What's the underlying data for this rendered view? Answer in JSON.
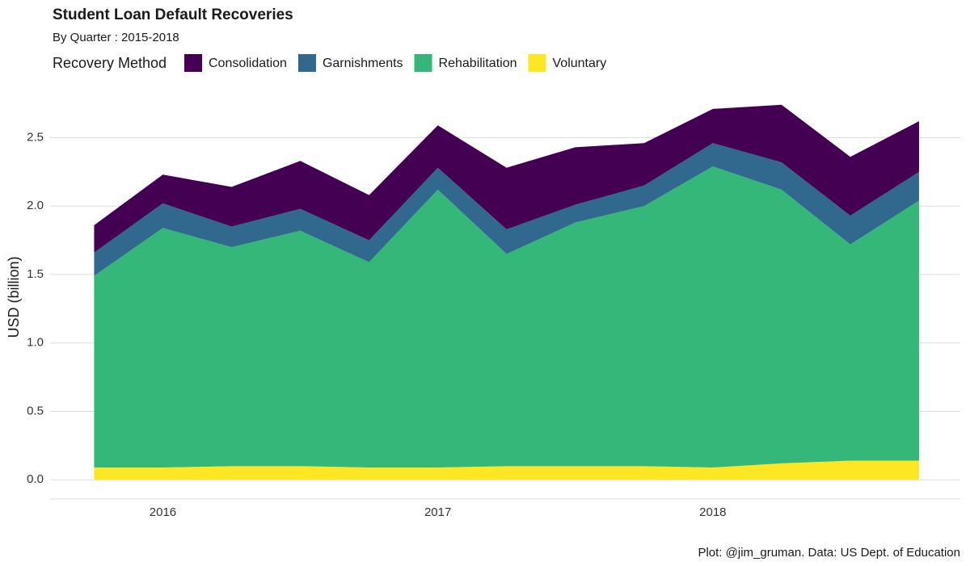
{
  "chart_data": {
    "type": "stacked_area",
    "title": "Student Loan Default Recoveries",
    "subtitle": "By Quarter : 2015-2018",
    "legend_title": "Recovery Method",
    "y_label": "USD (billion)",
    "caption": "Plot: @jim_gruman. Data: US Dept. of Education",
    "x": [
      2015.75,
      2016,
      2016.25,
      2016.5,
      2016.75,
      2017,
      2017.25,
      2017.5,
      2017.75,
      2018,
      2018.25,
      2018.5,
      2018.75
    ],
    "series": [
      {
        "name": "Consolidation",
        "color": "#440154",
        "values": [
          0.2,
          0.21,
          0.29,
          0.35,
          0.33,
          0.31,
          0.45,
          0.42,
          0.31,
          0.25,
          0.42,
          0.43,
          0.37
        ]
      },
      {
        "name": "Garnishments",
        "color": "#31688e",
        "values": [
          0.17,
          0.18,
          0.15,
          0.16,
          0.16,
          0.16,
          0.18,
          0.13,
          0.15,
          0.17,
          0.2,
          0.21,
          0.21
        ]
      },
      {
        "name": "Rehabilitation",
        "color": "#35b779",
        "values": [
          1.4,
          1.75,
          1.6,
          1.72,
          1.5,
          2.03,
          1.55,
          1.78,
          1.9,
          2.2,
          2.0,
          1.58,
          1.9
        ]
      },
      {
        "name": "Voluntary",
        "color": "#fde725",
        "values": [
          0.09,
          0.09,
          0.1,
          0.1,
          0.09,
          0.09,
          0.1,
          0.1,
          0.1,
          0.09,
          0.12,
          0.14,
          0.14
        ]
      }
    ],
    "xlim": [
      2015.59,
      2018.9
    ],
    "xticks": [
      2016,
      2017,
      2018
    ],
    "ylim": [
      -0.14,
      2.78
    ],
    "yticks": [
      {
        "value": 0,
        "label": "0.0"
      },
      {
        "value": 0.5,
        "label": "0.5"
      },
      {
        "value": 1,
        "label": "1.0"
      },
      {
        "value": 1.5,
        "label": "1.5"
      },
      {
        "value": 2,
        "label": "2.0"
      },
      {
        "value": 2.5,
        "label": "2.5"
      }
    ],
    "grid": true
  }
}
